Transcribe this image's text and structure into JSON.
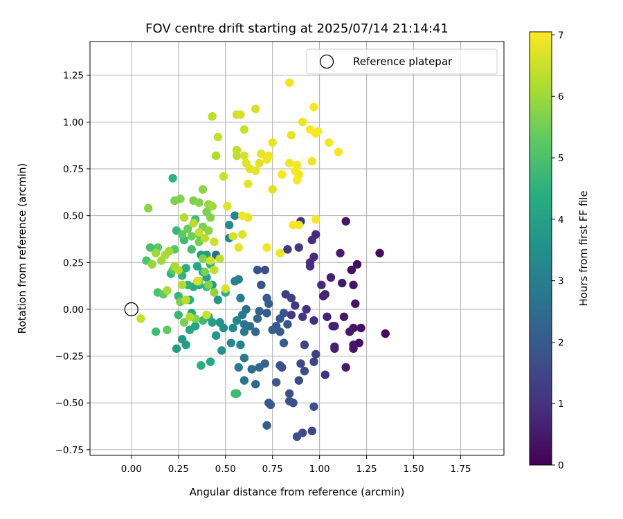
{
  "chart_data": {
    "type": "scatter",
    "title": "FOV centre drift starting at 2025/07/14 21:14:41",
    "xlabel": "Angular distance from reference (arcmin)",
    "ylabel": "Rotation from reference (arcmin)",
    "xlim": [
      -0.22,
      1.98
    ],
    "ylim": [
      -0.78,
      1.43
    ],
    "x_ticks": [
      "0.00",
      "0.25",
      "0.50",
      "0.75",
      "1.00",
      "1.25",
      "1.50",
      "1.75"
    ],
    "y_ticks": [
      "−0.75",
      "−0.50",
      "−0.25",
      "0.00",
      "0.25",
      "0.50",
      "0.75",
      "1.00",
      "1.25"
    ],
    "grid": true,
    "legend": {
      "position": "upper-right",
      "entries": [
        "Reference platepar"
      ]
    },
    "reference_point": {
      "x": 0.0,
      "y": 0.0
    },
    "colorbar": {
      "label": "Hours from first FF file",
      "colormap": "viridis",
      "range": [
        0,
        7.05
      ],
      "ticks": [
        "0",
        "1",
        "2",
        "3",
        "4",
        "5",
        "6",
        "7"
      ]
    },
    "points": [
      {
        "x": 1.35,
        "y": -0.13,
        "c": 0.15
      },
      {
        "x": 1.32,
        "y": 0.3,
        "c": 0.2
      },
      {
        "x": 1.22,
        "y": -0.1,
        "c": 0.3
      },
      {
        "x": 1.21,
        "y": -0.18,
        "c": 0.3
      },
      {
        "x": 1.2,
        "y": 0.24,
        "c": 0.25
      },
      {
        "x": 1.19,
        "y": 0.03,
        "c": 0.35
      },
      {
        "x": 1.18,
        "y": -0.1,
        "c": 0.4
      },
      {
        "x": 1.18,
        "y": 0.13,
        "c": 0.35
      },
      {
        "x": 1.17,
        "y": 0.21,
        "c": 0.3
      },
      {
        "x": 1.16,
        "y": -0.12,
        "c": 0.45
      },
      {
        "x": 1.14,
        "y": 0.47,
        "c": 0.4
      },
      {
        "x": 1.13,
        "y": -0.04,
        "c": 0.5
      },
      {
        "x": 1.12,
        "y": 0.14,
        "c": 0.5
      },
      {
        "x": 1.11,
        "y": 0.3,
        "c": 0.55
      },
      {
        "x": 1.08,
        "y": -0.09,
        "c": 0.6
      },
      {
        "x": 1.07,
        "y": -0.09,
        "c": 0.65
      },
      {
        "x": 1.06,
        "y": 0.17,
        "c": 0.6
      },
      {
        "x": 1.04,
        "y": -0.04,
        "c": 0.7
      },
      {
        "x": 1.03,
        "y": 0.08,
        "c": 0.75
      },
      {
        "x": 1.02,
        "y": 0.07,
        "c": 0.7
      },
      {
        "x": 1.01,
        "y": 0.13,
        "c": 0.8
      },
      {
        "x": 0.98,
        "y": 0.4,
        "c": 0.8
      },
      {
        "x": 0.97,
        "y": 0.28,
        "c": 0.85
      },
      {
        "x": 0.96,
        "y": 0.37,
        "c": 0.9
      },
      {
        "x": 0.95,
        "y": 0.23,
        "c": 0.9
      },
      {
        "x": 0.95,
        "y": 0.25,
        "c": 0.95
      },
      {
        "x": 0.97,
        "y": -0.06,
        "c": 1.0
      },
      {
        "x": 0.93,
        "y": 0.0,
        "c": 1.0
      },
      {
        "x": 0.91,
        "y": -0.04,
        "c": 1.05
      },
      {
        "x": 0.9,
        "y": 0.47,
        "c": 1.1
      },
      {
        "x": 0.89,
        "y": 0.33,
        "c": 1.15
      },
      {
        "x": 0.87,
        "y": 0.02,
        "c": 1.15
      },
      {
        "x": 0.85,
        "y": -0.03,
        "c": 1.2
      },
      {
        "x": 0.83,
        "y": 0.32,
        "c": 1.2
      },
      {
        "x": 0.82,
        "y": 0.08,
        "c": 1.25
      },
      {
        "x": 0.85,
        "y": 0.06,
        "c": 1.3
      },
      {
        "x": 1.18,
        "y": -0.21,
        "c": 0.4
      },
      {
        "x": 1.18,
        "y": -0.19,
        "c": 0.45
      },
      {
        "x": 1.14,
        "y": -0.31,
        "c": 0.5
      },
      {
        "x": 1.08,
        "y": -0.2,
        "c": 0.6
      },
      {
        "x": 1.08,
        "y": -0.21,
        "c": 0.65
      },
      {
        "x": 1.03,
        "y": -0.35,
        "c": 1.0
      },
      {
        "x": 0.98,
        "y": -0.24,
        "c": 1.3
      },
      {
        "x": 0.97,
        "y": -0.28,
        "c": 1.4
      },
      {
        "x": 0.96,
        "y": -0.65,
        "c": 1.5
      },
      {
        "x": 0.92,
        "y": -0.19,
        "c": 1.4
      },
      {
        "x": 0.91,
        "y": -0.66,
        "c": 1.6
      },
      {
        "x": 0.88,
        "y": -0.68,
        "c": 1.7
      },
      {
        "x": 0.9,
        "y": -0.29,
        "c": 1.5
      },
      {
        "x": 0.89,
        "y": -0.38,
        "c": 1.6
      },
      {
        "x": 0.86,
        "y": -0.5,
        "c": 1.7
      },
      {
        "x": 0.84,
        "y": -0.45,
        "c": 1.7
      },
      {
        "x": 0.97,
        "y": -0.52,
        "c": 1.75
      },
      {
        "x": 0.92,
        "y": -0.33,
        "c": 1.6
      },
      {
        "x": 0.84,
        "y": -0.49,
        "c": 1.8
      },
      {
        "x": 0.8,
        "y": -0.31,
        "c": 1.75
      },
      {
        "x": 0.79,
        "y": -0.3,
        "c": 1.8
      },
      {
        "x": 0.77,
        "y": -0.39,
        "c": 1.9
      },
      {
        "x": 0.73,
        "y": -0.5,
        "c": 1.9
      },
      {
        "x": 0.72,
        "y": -0.62,
        "c": 1.95
      },
      {
        "x": 0.74,
        "y": -0.51,
        "c": 2.0
      },
      {
        "x": 0.81,
        "y": -0.18,
        "c": 2.0
      },
      {
        "x": 0.79,
        "y": -0.12,
        "c": 2.0
      },
      {
        "x": 0.83,
        "y": -0.08,
        "c": 1.9
      },
      {
        "x": 0.81,
        "y": -0.02,
        "c": 1.85
      },
      {
        "x": 0.79,
        "y": -0.05,
        "c": 1.9
      },
      {
        "x": 0.77,
        "y": -0.09,
        "c": 1.95
      },
      {
        "x": 0.75,
        "y": -0.11,
        "c": 2.1
      },
      {
        "x": 0.72,
        "y": 0.06,
        "c": 2.0
      },
      {
        "x": 0.73,
        "y": 0.03,
        "c": 2.1
      },
      {
        "x": 0.72,
        "y": -0.02,
        "c": 2.05
      },
      {
        "x": 0.71,
        "y": 0.21,
        "c": 1.7
      },
      {
        "x": 0.69,
        "y": 0.13,
        "c": 1.8
      },
      {
        "x": 0.67,
        "y": 0.21,
        "c": 1.75
      },
      {
        "x": 0.68,
        "y": -0.01,
        "c": 2.2
      },
      {
        "x": 0.67,
        "y": -0.05,
        "c": 2.3
      },
      {
        "x": 0.66,
        "y": -0.12,
        "c": 2.4
      },
      {
        "x": 0.71,
        "y": -0.29,
        "c": 2.3
      },
      {
        "x": 0.68,
        "y": -0.31,
        "c": 2.4
      },
      {
        "x": 0.66,
        "y": -0.4,
        "c": 2.4
      },
      {
        "x": 0.64,
        "y": -0.32,
        "c": 2.5
      },
      {
        "x": 0.63,
        "y": -0.09,
        "c": 2.5
      },
      {
        "x": 0.61,
        "y": 0.0,
        "c": 2.6
      },
      {
        "x": 0.6,
        "y": -0.08,
        "c": 2.7
      },
      {
        "x": 0.59,
        "y": -0.03,
        "c": 2.8
      },
      {
        "x": 0.6,
        "y": -0.38,
        "c": 2.7
      },
      {
        "x": 0.57,
        "y": -0.31,
        "c": 2.9
      },
      {
        "x": 0.6,
        "y": -0.26,
        "c": 2.8
      },
      {
        "x": 0.58,
        "y": 0.06,
        "c": 2.9
      },
      {
        "x": 0.57,
        "y": 0.16,
        "c": 3.0
      },
      {
        "x": 0.55,
        "y": 0.15,
        "c": 3.1
      },
      {
        "x": 0.56,
        "y": -0.06,
        "c": 3.2
      },
      {
        "x": 0.54,
        "y": -0.1,
        "c": 3.3
      },
      {
        "x": 0.53,
        "y": -0.18,
        "c": 3.3
      },
      {
        "x": 0.58,
        "y": -0.19,
        "c": 3.1
      },
      {
        "x": 0.52,
        "y": 0.38,
        "c": 3.2
      },
      {
        "x": 0.52,
        "y": 0.45,
        "c": 3.4
      },
      {
        "x": 0.55,
        "y": 0.5,
        "c": 3.1
      },
      {
        "x": 0.45,
        "y": 0.29,
        "c": 2.6
      },
      {
        "x": 0.6,
        "y": -0.12,
        "c": 2.9
      },
      {
        "x": 0.49,
        "y": -0.1,
        "c": 3.5
      },
      {
        "x": 0.47,
        "y": -0.07,
        "c": 3.6
      },
      {
        "x": 0.46,
        "y": 0.05,
        "c": 3.7
      },
      {
        "x": 0.48,
        "y": -0.22,
        "c": 3.6
      },
      {
        "x": 0.45,
        "y": -0.14,
        "c": 3.7
      },
      {
        "x": 0.43,
        "y": 0.13,
        "c": 3.8
      },
      {
        "x": 0.43,
        "y": -0.07,
        "c": 3.9
      },
      {
        "x": 0.41,
        "y": -0.04,
        "c": 4.1
      },
      {
        "x": 0.4,
        "y": 0.17,
        "c": 4.0
      },
      {
        "x": 0.4,
        "y": 0.29,
        "c": 3.9
      },
      {
        "x": 0.37,
        "y": 0.29,
        "c": 3.8
      },
      {
        "x": 0.38,
        "y": 0.2,
        "c": 4.0
      },
      {
        "x": 0.36,
        "y": 0.13,
        "c": 4.3
      },
      {
        "x": 0.35,
        "y": 0.23,
        "c": 4.2
      },
      {
        "x": 0.33,
        "y": 0.12,
        "c": 4.3
      },
      {
        "x": 0.32,
        "y": -0.02,
        "c": 4.2
      },
      {
        "x": 0.31,
        "y": 0.05,
        "c": 4.4
      },
      {
        "x": 0.3,
        "y": 0.13,
        "c": 4.5
      },
      {
        "x": 0.29,
        "y": 0.22,
        "c": 4.4
      },
      {
        "x": 0.27,
        "y": 0.18,
        "c": 4.6
      },
      {
        "x": 0.25,
        "y": 0.07,
        "c": 4.6
      },
      {
        "x": 0.25,
        "y": -0.03,
        "c": 4.7
      },
      {
        "x": 0.24,
        "y": -0.21,
        "c": 3.9
      },
      {
        "x": 0.27,
        "y": -0.16,
        "c": 3.8
      },
      {
        "x": 0.29,
        "y": -0.19,
        "c": 3.9
      },
      {
        "x": 0.31,
        "y": -0.11,
        "c": 4.1
      },
      {
        "x": 0.34,
        "y": -0.09,
        "c": 4.1
      },
      {
        "x": 0.37,
        "y": -0.3,
        "c": 4.4
      },
      {
        "x": 0.42,
        "y": -0.28,
        "c": 4.2
      },
      {
        "x": 0.5,
        "y": 0.09,
        "c": 4.4
      },
      {
        "x": 0.55,
        "y": -0.45,
        "c": 4.8
      },
      {
        "x": 0.56,
        "y": -0.45,
        "c": 4.6
      },
      {
        "x": 0.38,
        "y": -0.06,
        "c": 4.8
      },
      {
        "x": 0.4,
        "y": 0.12,
        "c": 4.7
      },
      {
        "x": 0.42,
        "y": 0.24,
        "c": 4.5
      },
      {
        "x": 0.22,
        "y": 0.7,
        "c": 4.5
      },
      {
        "x": 0.21,
        "y": 0.19,
        "c": 4.6
      },
      {
        "x": 0.24,
        "y": 0.42,
        "c": 4.7
      },
      {
        "x": 0.28,
        "y": 0.37,
        "c": 4.8
      },
      {
        "x": 0.32,
        "y": 0.32,
        "c": 4.9
      },
      {
        "x": 0.34,
        "y": 0.48,
        "c": 4.9
      },
      {
        "x": 0.36,
        "y": 0.4,
        "c": 5.0
      },
      {
        "x": 0.13,
        "y": -0.12,
        "c": 4.8
      },
      {
        "x": 0.14,
        "y": 0.09,
        "c": 5.0
      },
      {
        "x": 0.1,
        "y": 0.33,
        "c": 5.0
      },
      {
        "x": 0.08,
        "y": 0.26,
        "c": 5.1
      },
      {
        "x": 0.14,
        "y": 0.33,
        "c": 5.2
      },
      {
        "x": 0.17,
        "y": 0.08,
        "c": 5.3
      },
      {
        "x": 0.19,
        "y": -0.11,
        "c": 5.3
      },
      {
        "x": 0.22,
        "y": 0.21,
        "c": 5.3
      },
      {
        "x": 0.23,
        "y": 0.32,
        "c": 5.2
      },
      {
        "x": 0.27,
        "y": 0.4,
        "c": 5.3
      },
      {
        "x": 0.3,
        "y": 0.43,
        "c": 5.4
      },
      {
        "x": 0.32,
        "y": 0.39,
        "c": 5.5
      },
      {
        "x": 0.36,
        "y": 0.36,
        "c": 5.5
      },
      {
        "x": 0.38,
        "y": 0.44,
        "c": 5.6
      },
      {
        "x": 0.4,
        "y": 0.52,
        "c": 5.6
      },
      {
        "x": 0.42,
        "y": 0.49,
        "c": 5.7
      },
      {
        "x": 0.26,
        "y": 0.04,
        "c": 5.6
      },
      {
        "x": 0.28,
        "y": -0.07,
        "c": 5.6
      },
      {
        "x": 0.34,
        "y": -0.05,
        "c": 5.7
      },
      {
        "x": 0.36,
        "y": 0.15,
        "c": 5.8
      },
      {
        "x": 0.41,
        "y": 0.13,
        "c": 5.7
      },
      {
        "x": 0.44,
        "y": 0.09,
        "c": 5.8
      },
      {
        "x": 0.39,
        "y": 0.2,
        "c": 5.6
      },
      {
        "x": 0.38,
        "y": 0.27,
        "c": 5.7
      },
      {
        "x": 0.41,
        "y": 0.42,
        "c": 5.8
      },
      {
        "x": 0.33,
        "y": 0.58,
        "c": 5.6
      },
      {
        "x": 0.36,
        "y": 0.57,
        "c": 5.7
      },
      {
        "x": 0.38,
        "y": 0.64,
        "c": 5.8
      },
      {
        "x": 0.41,
        "y": 0.56,
        "c": 5.9
      },
      {
        "x": 0.43,
        "y": 0.55,
        "c": 6.0
      },
      {
        "x": 0.26,
        "y": 0.59,
        "c": 5.7
      },
      {
        "x": 0.23,
        "y": 0.58,
        "c": 5.6
      },
      {
        "x": 0.09,
        "y": 0.54,
        "c": 5.8
      },
      {
        "x": 0.11,
        "y": 0.24,
        "c": 5.9
      },
      {
        "x": 0.13,
        "y": 0.3,
        "c": 6.0
      },
      {
        "x": 0.16,
        "y": 0.26,
        "c": 6.0
      },
      {
        "x": 0.18,
        "y": 0.29,
        "c": 6.1
      },
      {
        "x": 0.2,
        "y": 0.31,
        "c": 6.0
      },
      {
        "x": 0.23,
        "y": 0.23,
        "c": 6.1
      },
      {
        "x": 0.25,
        "y": 0.21,
        "c": 6.2
      },
      {
        "x": 0.27,
        "y": 0.13,
        "c": 6.2
      },
      {
        "x": 0.29,
        "y": 0.05,
        "c": 6.3
      },
      {
        "x": 0.31,
        "y": -0.04,
        "c": 6.2
      },
      {
        "x": 0.05,
        "y": -0.05,
        "c": 6.4
      },
      {
        "x": 0.19,
        "y": 0.1,
        "c": 6.1
      },
      {
        "x": 0.28,
        "y": 0.49,
        "c": 6.2
      },
      {
        "x": 0.33,
        "y": 0.46,
        "c": 6.3
      },
      {
        "x": 0.36,
        "y": 0.41,
        "c": 6.4
      },
      {
        "x": 0.39,
        "y": 0.38,
        "c": 6.3
      },
      {
        "x": 0.42,
        "y": 0.26,
        "c": 6.5
      },
      {
        "x": 0.44,
        "y": 0.21,
        "c": 6.4
      },
      {
        "x": 0.47,
        "y": 0.27,
        "c": 6.4
      },
      {
        "x": 0.35,
        "y": 0.15,
        "c": 6.6
      },
      {
        "x": 0.4,
        "y": -0.03,
        "c": 6.5
      },
      {
        "x": 0.44,
        "y": 0.36,
        "c": 6.5
      },
      {
        "x": 0.5,
        "y": 0.11,
        "c": 6.6
      },
      {
        "x": 0.51,
        "y": 0.55,
        "c": 6.7
      },
      {
        "x": 0.54,
        "y": 0.39,
        "c": 6.6
      },
      {
        "x": 0.57,
        "y": 0.33,
        "c": 6.8
      },
      {
        "x": 0.59,
        "y": 0.4,
        "c": 6.7
      },
      {
        "x": 0.62,
        "y": 0.49,
        "c": 6.8
      },
      {
        "x": 0.59,
        "y": 0.5,
        "c": 6.9
      },
      {
        "x": 0.43,
        "y": 1.03,
        "c": 6.3
      },
      {
        "x": 0.46,
        "y": 0.92,
        "c": 6.4
      },
      {
        "x": 0.45,
        "y": 0.82,
        "c": 6.2
      },
      {
        "x": 0.49,
        "y": 0.71,
        "c": 6.5
      },
      {
        "x": 0.56,
        "y": 0.82,
        "c": 6.3
      },
      {
        "x": 0.56,
        "y": 0.85,
        "c": 6.4
      },
      {
        "x": 0.56,
        "y": 1.04,
        "c": 6.5
      },
      {
        "x": 0.58,
        "y": 1.04,
        "c": 6.6
      },
      {
        "x": 0.6,
        "y": 0.96,
        "c": 6.5
      },
      {
        "x": 0.61,
        "y": 0.78,
        "c": 6.7
      },
      {
        "x": 0.6,
        "y": 0.82,
        "c": 6.6
      },
      {
        "x": 0.62,
        "y": 0.67,
        "c": 6.8
      },
      {
        "x": 0.63,
        "y": 0.75,
        "c": 6.7
      },
      {
        "x": 0.66,
        "y": 0.74,
        "c": 6.8
      },
      {
        "x": 0.66,
        "y": 1.07,
        "c": 6.6
      },
      {
        "x": 0.68,
        "y": 0.78,
        "c": 6.7
      },
      {
        "x": 0.69,
        "y": 0.83,
        "c": 6.8
      },
      {
        "x": 0.72,
        "y": 0.8,
        "c": 6.9
      },
      {
        "x": 0.73,
        "y": 0.82,
        "c": 6.9
      },
      {
        "x": 0.75,
        "y": 0.89,
        "c": 6.8
      },
      {
        "x": 0.75,
        "y": 0.64,
        "c": 6.7
      },
      {
        "x": 0.72,
        "y": 0.33,
        "c": 6.9
      },
      {
        "x": 0.8,
        "y": 0.72,
        "c": 7.0
      },
      {
        "x": 0.84,
        "y": 0.78,
        "c": 6.9
      },
      {
        "x": 0.85,
        "y": 0.93,
        "c": 6.8
      },
      {
        "x": 0.87,
        "y": 0.74,
        "c": 7.0
      },
      {
        "x": 0.88,
        "y": 0.69,
        "c": 7.0
      },
      {
        "x": 0.88,
        "y": 0.77,
        "c": 7.0
      },
      {
        "x": 0.89,
        "y": 0.72,
        "c": 6.9
      },
      {
        "x": 0.86,
        "y": 0.45,
        "c": 7.0
      },
      {
        "x": 0.89,
        "y": 0.45,
        "c": 7.0
      },
      {
        "x": 0.84,
        "y": 1.21,
        "c": 6.9
      },
      {
        "x": 0.91,
        "y": 1.0,
        "c": 6.9
      },
      {
        "x": 0.95,
        "y": 0.96,
        "c": 7.0
      },
      {
        "x": 0.97,
        "y": 1.08,
        "c": 7.0
      },
      {
        "x": 0.99,
        "y": 0.95,
        "c": 7.0
      },
      {
        "x": 0.96,
        "y": 0.79,
        "c": 6.9
      },
      {
        "x": 0.98,
        "y": 0.94,
        "c": 7.0
      },
      {
        "x": 0.98,
        "y": 0.48,
        "c": 7.0
      },
      {
        "x": 1.05,
        "y": 0.89,
        "c": 6.95
      },
      {
        "x": 1.1,
        "y": 0.84,
        "c": 6.95
      },
      {
        "x": 0.79,
        "y": 0.3,
        "c": 6.9
      }
    ]
  }
}
